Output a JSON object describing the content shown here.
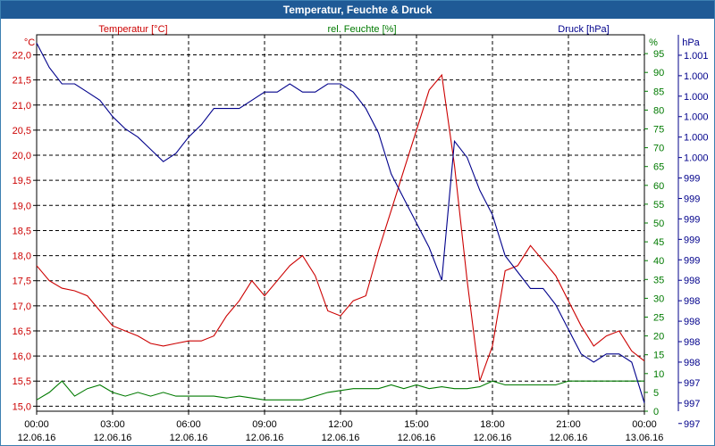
{
  "window": {
    "title": "Temperatur, Feuchte & Druck"
  },
  "colors": {
    "temperature": "#cc0000",
    "humidity": "#007a00",
    "pressure": "#00008b",
    "axis": "#000000",
    "title_bg": "#1f5a96"
  },
  "chart_data": {
    "type": "line",
    "title": "Temperatur, Feuchte & Druck",
    "legend": [
      {
        "label": "Temperatur [°C]",
        "color": "#cc0000"
      },
      {
        "label": "rel. Feuchte [%]",
        "color": "#007a00"
      },
      {
        "label": "Druck [hPa]",
        "color": "#00008b"
      }
    ],
    "axes": {
      "x": {
        "ticks": [
          {
            "hour": 0,
            "time": "00:00",
            "date": "12.06.16"
          },
          {
            "hour": 3,
            "time": "03:00",
            "date": "12.06.16"
          },
          {
            "hour": 6,
            "time": "06:00",
            "date": "12.06.16"
          },
          {
            "hour": 9,
            "time": "09:00",
            "date": "12.06.16"
          },
          {
            "hour": 12,
            "time": "12:00",
            "date": "12.06.16"
          },
          {
            "hour": 15,
            "time": "15:00",
            "date": "12.06.16"
          },
          {
            "hour": 18,
            "time": "18:00",
            "date": "12.06.16"
          },
          {
            "hour": 21,
            "time": "21:00",
            "date": "12.06.16"
          },
          {
            "hour": 24,
            "time": "00:00",
            "date": "13.06.16"
          }
        ],
        "range": [
          0,
          24
        ]
      },
      "temperature": {
        "unit": "°C",
        "range": [
          14.9,
          22.4
        ],
        "ticks": [
          "22,0",
          "21,5",
          "21,0",
          "20,5",
          "20,0",
          "19,5",
          "19,0",
          "18,5",
          "18,0",
          "17,5",
          "17,0",
          "16,5",
          "16,0",
          "15,5",
          "15,0"
        ],
        "tick_values": [
          22.0,
          21.5,
          21.0,
          20.5,
          20.0,
          19.5,
          19.0,
          18.5,
          18.0,
          17.5,
          17.0,
          16.5,
          16.0,
          15.5,
          15.0
        ]
      },
      "humidity": {
        "unit": "%",
        "range": [
          0,
          100
        ],
        "ticks": [
          "95",
          "90",
          "85",
          "80",
          "75",
          "70",
          "65",
          "60",
          "55",
          "50",
          "45",
          "40",
          "35",
          "30",
          "25",
          "20",
          "15",
          "10",
          "5",
          "0"
        ],
        "tick_values": [
          95,
          90,
          85,
          80,
          75,
          70,
          65,
          60,
          55,
          50,
          45,
          40,
          35,
          30,
          25,
          20,
          15,
          10,
          5,
          0
        ]
      },
      "pressure": {
        "unit": "hPa",
        "range": [
          996.9,
          1001.5
        ],
        "ticks": [
          "1.001",
          "1.000",
          "1.000",
          "1.000",
          "1.000",
          "1.000",
          "999",
          "999",
          "999",
          "999",
          "999",
          "998",
          "998",
          "998",
          "998",
          "998",
          "997",
          "997",
          "997"
        ],
        "tick_values": [
          1001.25,
          1001.0,
          1000.75,
          1000.5,
          1000.25,
          1000.0,
          999.75,
          999.5,
          999.25,
          999.0,
          998.75,
          998.5,
          998.25,
          998.0,
          997.75,
          997.5,
          997.25,
          997.0,
          996.75
        ]
      }
    },
    "series": [
      {
        "name": "Temperatur [°C]",
        "axis": "temperature",
        "color": "#cc0000",
        "points": [
          [
            0,
            17.8
          ],
          [
            0.5,
            17.5
          ],
          [
            1,
            17.35
          ],
          [
            1.5,
            17.3
          ],
          [
            2,
            17.2
          ],
          [
            2.5,
            16.9
          ],
          [
            3,
            16.6
          ],
          [
            3.5,
            16.5
          ],
          [
            4,
            16.4
          ],
          [
            4.5,
            16.25
          ],
          [
            5,
            16.2
          ],
          [
            5.5,
            16.25
          ],
          [
            6,
            16.3
          ],
          [
            6.5,
            16.3
          ],
          [
            7,
            16.4
          ],
          [
            7.5,
            16.8
          ],
          [
            8,
            17.1
          ],
          [
            8.5,
            17.5
          ],
          [
            9,
            17.2
          ],
          [
            9.5,
            17.5
          ],
          [
            10,
            17.8
          ],
          [
            10.5,
            18.0
          ],
          [
            11,
            17.6
          ],
          [
            11.5,
            16.9
          ],
          [
            12,
            16.8
          ],
          [
            12.5,
            17.1
          ],
          [
            13,
            17.2
          ],
          [
            13.5,
            18.1
          ],
          [
            14,
            18.9
          ],
          [
            14.5,
            19.7
          ],
          [
            15,
            20.5
          ],
          [
            15.5,
            21.3
          ],
          [
            16,
            21.6
          ],
          [
            16.5,
            19.8
          ],
          [
            17,
            17.5
          ],
          [
            17.5,
            15.5
          ],
          [
            18,
            16.2
          ],
          [
            18.5,
            17.7
          ],
          [
            19,
            17.8
          ],
          [
            19.5,
            18.2
          ],
          [
            20,
            17.9
          ],
          [
            20.5,
            17.6
          ],
          [
            21,
            17.1
          ],
          [
            21.5,
            16.6
          ],
          [
            22,
            16.2
          ],
          [
            22.5,
            16.4
          ],
          [
            23,
            16.5
          ],
          [
            23.5,
            16.1
          ],
          [
            24,
            15.9
          ]
        ]
      },
      {
        "name": "rel. Feuchte [%]",
        "axis": "humidity",
        "color": "#007a00",
        "points": [
          [
            0,
            3
          ],
          [
            0.5,
            5
          ],
          [
            1,
            8
          ],
          [
            1.5,
            4
          ],
          [
            2,
            6
          ],
          [
            2.5,
            7
          ],
          [
            3,
            5
          ],
          [
            3.5,
            4
          ],
          [
            4,
            5
          ],
          [
            4.5,
            4
          ],
          [
            5,
            5
          ],
          [
            5.5,
            4
          ],
          [
            6,
            4
          ],
          [
            6.5,
            4
          ],
          [
            7,
            4
          ],
          [
            7.5,
            3.5
          ],
          [
            8,
            4
          ],
          [
            8.5,
            3.5
          ],
          [
            9,
            3
          ],
          [
            9.5,
            3
          ],
          [
            10,
            3
          ],
          [
            10.5,
            3
          ],
          [
            11,
            4
          ],
          [
            11.5,
            5
          ],
          [
            12,
            5.5
          ],
          [
            12.5,
            6
          ],
          [
            13,
            6
          ],
          [
            13.5,
            6
          ],
          [
            14,
            7
          ],
          [
            14.5,
            6
          ],
          [
            15,
            7
          ],
          [
            15.5,
            6
          ],
          [
            16,
            6.5
          ],
          [
            16.5,
            6
          ],
          [
            17,
            6
          ],
          [
            17.5,
            6.5
          ],
          [
            18,
            8
          ],
          [
            18.5,
            7
          ],
          [
            19,
            7
          ],
          [
            19.5,
            7
          ],
          [
            20,
            7
          ],
          [
            20.5,
            7
          ],
          [
            21,
            8
          ],
          [
            21.5,
            8
          ],
          [
            22,
            8
          ],
          [
            22.5,
            8
          ],
          [
            23,
            8
          ],
          [
            23.5,
            8
          ],
          [
            24,
            8
          ]
        ]
      },
      {
        "name": "Druck [hPa]",
        "axis": "pressure",
        "color": "#00008b",
        "points": [
          [
            0,
            1001.4
          ],
          [
            0.5,
            1001.1
          ],
          [
            1,
            1000.9
          ],
          [
            1.5,
            1000.9
          ],
          [
            2,
            1000.8
          ],
          [
            2.5,
            1000.7
          ],
          [
            3,
            1000.5
          ],
          [
            3.5,
            1000.35
          ],
          [
            4,
            1000.25
          ],
          [
            4.5,
            1000.1
          ],
          [
            5,
            999.95
          ],
          [
            5.5,
            1000.05
          ],
          [
            6,
            1000.25
          ],
          [
            6.5,
            1000.4
          ],
          [
            7,
            1000.6
          ],
          [
            7.5,
            1000.6
          ],
          [
            8,
            1000.6
          ],
          [
            8.5,
            1000.7
          ],
          [
            9,
            1000.8
          ],
          [
            9.5,
            1000.8
          ],
          [
            10,
            1000.9
          ],
          [
            10.5,
            1000.8
          ],
          [
            11,
            1000.8
          ],
          [
            11.5,
            1000.9
          ],
          [
            12,
            1000.9
          ],
          [
            12.5,
            1000.8
          ],
          [
            13,
            1000.6
          ],
          [
            13.5,
            1000.3
          ],
          [
            14,
            999.8
          ],
          [
            14.5,
            999.5
          ],
          [
            15,
            999.2
          ],
          [
            15.5,
            998.9
          ],
          [
            16,
            998.5
          ],
          [
            16.5,
            1000.2
          ],
          [
            17,
            1000.0
          ],
          [
            17.5,
            999.6
          ],
          [
            18,
            999.3
          ],
          [
            18.5,
            998.8
          ],
          [
            19,
            998.6
          ],
          [
            19.5,
            998.4
          ],
          [
            20,
            998.4
          ],
          [
            20.5,
            998.2
          ],
          [
            21,
            997.9
          ],
          [
            21.5,
            997.6
          ],
          [
            22,
            997.5
          ],
          [
            22.5,
            997.6
          ],
          [
            23,
            997.6
          ],
          [
            23.5,
            997.5
          ],
          [
            24,
            997.0
          ]
        ]
      }
    ]
  }
}
